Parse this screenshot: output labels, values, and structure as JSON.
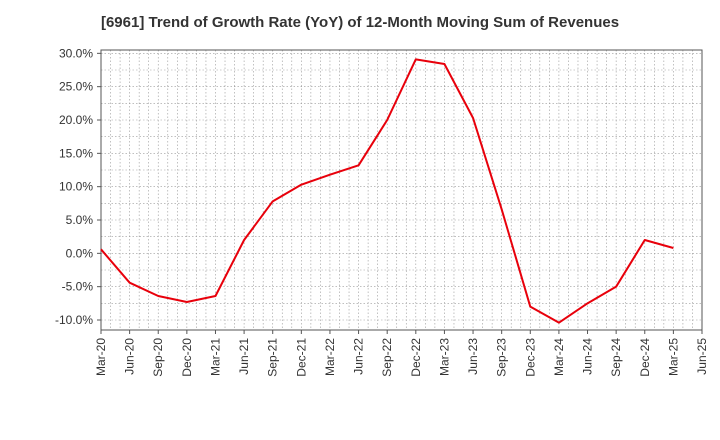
{
  "chart_data": {
    "type": "line",
    "title": "[6961]  Trend of Growth Rate (YoY) of 12-Month Moving Sum of Revenues",
    "xlabel": "",
    "ylabel": "",
    "ylim": [
      -11.5,
      30.5
    ],
    "yticks": [
      30,
      25,
      20,
      15,
      10,
      5,
      0,
      -5,
      -10
    ],
    "ytick_labels": [
      "30.0%",
      "25.0%",
      "20.0%",
      "15.0%",
      "10.0%",
      "5.0%",
      "0.0%",
      "-5.0%",
      "-10.0%"
    ],
    "categories": [
      "Mar-20",
      "Jun-20",
      "Sep-20",
      "Dec-20",
      "Mar-21",
      "Jun-21",
      "Sep-21",
      "Dec-21",
      "Mar-22",
      "Jun-22",
      "Sep-22",
      "Dec-22",
      "Mar-23",
      "Jun-23",
      "Sep-23",
      "Dec-23",
      "Mar-24",
      "Jun-24",
      "Sep-24",
      "Dec-24",
      "Mar-25",
      "Jun-25"
    ],
    "grid": true,
    "legend": "none",
    "series": [
      {
        "color": "#e8000b",
        "values": [
          0.6,
          -4.4,
          -6.4,
          -7.3,
          -6.4,
          2.0,
          7.8,
          10.3,
          11.8,
          13.2,
          20.0,
          29.1,
          28.4,
          20.3,
          6.6,
          -8.0,
          -10.4,
          -7.5,
          -5.0,
          2.0,
          0.8,
          null
        ]
      }
    ]
  }
}
